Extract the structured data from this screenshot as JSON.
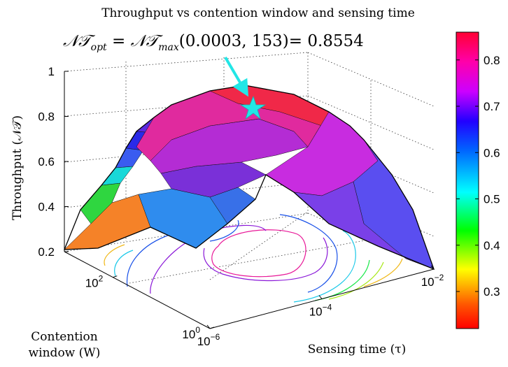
{
  "chart_data": {
    "type": "surface",
    "title": "Throughput vs contention window and sensing time",
    "annotation": {
      "lhs": "𝒩𝒯",
      "lhs_sub": "opt",
      "rhs": "𝒩𝒯",
      "rhs_sub": "max",
      "args": "(0.0003, 153)",
      "value_text": "= 0.8554",
      "tau": 0.0003,
      "W": 153,
      "value": 0.8554
    },
    "zlabel": "Throughput (𝒩𝒯)",
    "xlabel": "Sensing time (τ)",
    "ylabel_line1": "Contention",
    "ylabel_line2": "window (W)",
    "x_scale": "log",
    "y_scale": "log",
    "xlim": [
      1e-06,
      0.01
    ],
    "ylim": [
      1,
      1000
    ],
    "zlim": [
      0.2,
      1
    ],
    "z_ticks": [
      {
        "value": 0.2,
        "label": "0.2"
      },
      {
        "value": 0.4,
        "label": "0.4"
      },
      {
        "value": 0.6,
        "label": "0.6"
      },
      {
        "value": 0.8,
        "label": "0.8"
      },
      {
        "value": 1.0,
        "label": "1"
      }
    ],
    "x_ticks": [
      {
        "value": 1e-06,
        "base": "10",
        "exp": "−6"
      },
      {
        "value": 0.0001,
        "base": "10",
        "exp": "−4"
      },
      {
        "value": 0.01,
        "base": "10",
        "exp": "−2"
      }
    ],
    "y_ticks": [
      {
        "value": 1,
        "base": "10",
        "exp": "0"
      },
      {
        "value": 100,
        "base": "10",
        "exp": "2"
      }
    ],
    "colorbar": {
      "colormap": "hsv",
      "min": 0.22,
      "max": 0.86,
      "ticks": [
        {
          "value": 0.3,
          "label": "0.3"
        },
        {
          "value": 0.4,
          "label": "0.4"
        },
        {
          "value": 0.5,
          "label": "0.5"
        },
        {
          "value": 0.6,
          "label": "0.6"
        },
        {
          "value": 0.7,
          "label": "0.7"
        },
        {
          "value": 0.8,
          "label": "0.8"
        }
      ]
    },
    "marker": {
      "shape": "star",
      "color": "#22e6e6"
    },
    "grid": true
  }
}
